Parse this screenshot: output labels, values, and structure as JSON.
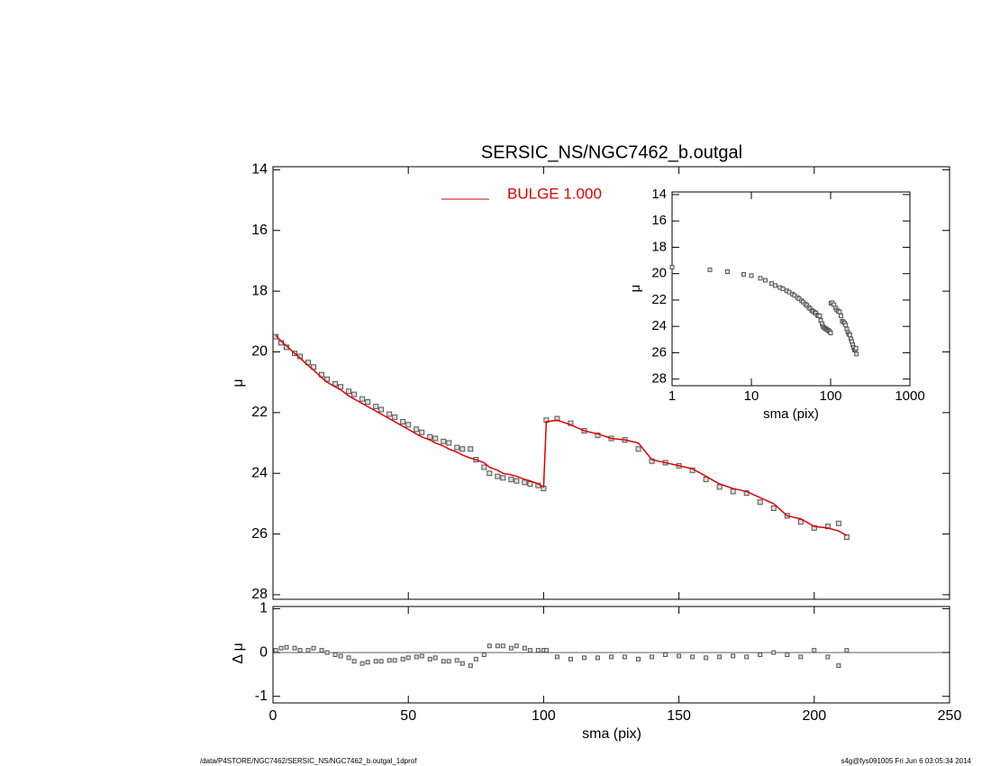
{
  "chart_data": [
    {
      "type": "line",
      "title": "SERSIC_NS/NGC7462_b.outgal",
      "ylabel": "μ",
      "x": [
        1,
        3,
        5,
        8,
        10,
        13,
        15,
        18,
        20,
        23,
        25,
        28,
        30,
        33,
        35,
        38,
        40,
        43,
        45,
        48,
        50,
        53,
        55,
        58,
        60,
        63,
        65,
        68,
        70,
        73,
        75,
        78,
        80,
        83,
        85,
        88,
        90,
        93,
        95,
        98,
        100,
        101,
        105,
        110,
        115,
        120,
        125,
        130,
        135,
        140,
        145,
        150,
        155,
        160,
        165,
        170,
        175,
        180,
        185,
        190,
        195,
        200,
        205,
        209,
        212
      ],
      "series": [
        {
          "style": "points",
          "color": "#555555",
          "values": [
            19.5,
            19.7,
            19.85,
            20.05,
            20.15,
            20.35,
            20.5,
            20.75,
            20.9,
            21.05,
            21.15,
            21.3,
            21.4,
            21.55,
            21.65,
            21.8,
            21.9,
            22.05,
            22.15,
            22.3,
            22.4,
            22.55,
            22.65,
            22.8,
            22.85,
            22.95,
            23.0,
            23.15,
            23.2,
            23.2,
            23.55,
            23.8,
            24.0,
            24.1,
            24.15,
            24.2,
            24.25,
            24.3,
            24.35,
            24.4,
            24.5,
            22.25,
            22.2,
            22.35,
            22.6,
            22.75,
            22.85,
            22.9,
            23.2,
            23.6,
            23.65,
            23.75,
            23.9,
            24.2,
            24.45,
            24.6,
            24.65,
            24.95,
            25.15,
            25.4,
            25.6,
            25.8,
            25.75,
            25.65,
            26.1
          ]
        },
        {
          "style": "line",
          "name": "BULGE  1.000",
          "color": "#e00000",
          "values": [
            19.45,
            19.65,
            19.8,
            20.05,
            20.2,
            20.45,
            20.6,
            20.85,
            21.0,
            21.15,
            21.25,
            21.45,
            21.55,
            21.7,
            21.8,
            21.95,
            22.05,
            22.2,
            22.3,
            22.45,
            22.55,
            22.7,
            22.8,
            22.9,
            23.0,
            23.1,
            23.2,
            23.3,
            23.4,
            23.5,
            23.55,
            23.65,
            23.8,
            23.9,
            24.0,
            24.05,
            24.1,
            24.2,
            24.25,
            24.35,
            24.45,
            22.3,
            22.25,
            22.4,
            22.6,
            22.7,
            22.85,
            22.9,
            23.0,
            23.55,
            23.65,
            23.75,
            23.85,
            24.1,
            24.35,
            24.5,
            24.6,
            24.8,
            25.0,
            25.4,
            25.5,
            25.75,
            25.8,
            25.9,
            26.05
          ]
        }
      ],
      "ylim": [
        28.15,
        13.9
      ],
      "yticks": [
        14,
        16,
        18,
        20,
        22,
        24,
        26,
        28
      ]
    },
    {
      "type": "scatter",
      "xlabel": "sma (pix)",
      "ylabel": "Δ μ",
      "values": [
        0.05,
        0.1,
        0.12,
        0.1,
        0.05,
        0.05,
        0.1,
        0.05,
        0,
        -0.05,
        -0.08,
        -0.12,
        -0.2,
        -0.25,
        -0.22,
        -0.2,
        -0.2,
        -0.18,
        -0.18,
        -0.15,
        -0.12,
        -0.1,
        -0.08,
        -0.15,
        -0.12,
        -0.2,
        -0.2,
        -0.18,
        -0.25,
        -0.3,
        -0.15,
        -0.05,
        0.15,
        0.15,
        0.15,
        0.1,
        0.15,
        0.1,
        0.05,
        0.05,
        0.05,
        0.05,
        -0.1,
        -0.15,
        -0.12,
        -0.12,
        -0.1,
        -0.1,
        -0.15,
        -0.1,
        -0.05,
        -0.08,
        -0.1,
        -0.12,
        -0.1,
        -0.08,
        -0.1,
        -0.05,
        0,
        -0.05,
        -0.1,
        0.05,
        -0.1,
        -0.3,
        0.05
      ],
      "color": "#555555",
      "xlim": [
        0,
        250
      ],
      "xticks": [
        0,
        50,
        100,
        150,
        200,
        250
      ],
      "ylim": [
        -1.15,
        1.05
      ],
      "yticks": [
        -1,
        0,
        1
      ]
    },
    {
      "type": "scatter",
      "xlabel": "sma (pix)",
      "ylabel": "μ",
      "log_x": true,
      "color": "#555555",
      "xlim": [
        1,
        1000
      ],
      "xticks": [
        1,
        10,
        100,
        1000
      ],
      "ylim": [
        28.5,
        13.8
      ],
      "yticks": [
        14,
        16,
        18,
        20,
        22,
        24,
        26,
        28
      ]
    }
  ],
  "footer": {
    "left": "/data/P4STORE/NGC7462/SERSIC_NS/NGC7462_b.outgal_1dprof",
    "right": "s4g@fys091005  Fri Jun  6 03:05:34 2014"
  }
}
